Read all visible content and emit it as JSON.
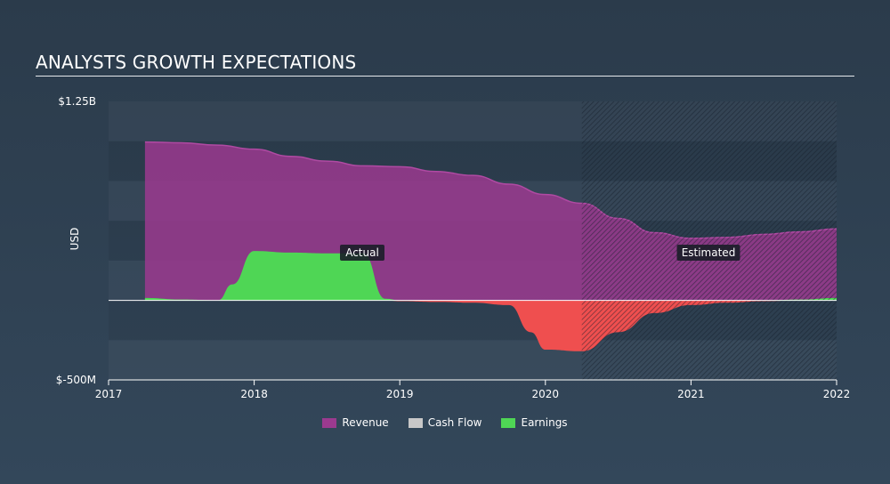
{
  "title": "ANALYSTS GROWTH EXPECTATIONS",
  "chart_data": {
    "type": "area",
    "ylabel": "USD",
    "ylim": [
      -500,
      1250
    ],
    "ylim_labels": [
      "$-500M",
      "$1.25B"
    ],
    "x_ticks": [
      2017,
      2018,
      2019,
      2020,
      2021,
      2022
    ],
    "xlim": [
      2017,
      2022
    ],
    "actual_end": 2020.25,
    "annotations": {
      "actual": "Actual",
      "estimated": "Estimated"
    },
    "legend_position": "bottom-center",
    "grid": true,
    "series": [
      {
        "name": "Revenue",
        "color": "#9b3a8f",
        "points": [
          [
            2017.25,
            995
          ],
          [
            2017.5,
            990
          ],
          [
            2017.75,
            975
          ],
          [
            2018.0,
            950
          ],
          [
            2018.25,
            905
          ],
          [
            2018.5,
            875
          ],
          [
            2018.75,
            845
          ],
          [
            2019.0,
            840
          ],
          [
            2019.25,
            810
          ],
          [
            2019.5,
            785
          ],
          [
            2019.75,
            730
          ],
          [
            2020.0,
            665
          ],
          [
            2020.25,
            610
          ],
          [
            2020.5,
            515
          ],
          [
            2020.75,
            425
          ],
          [
            2021.0,
            390
          ],
          [
            2021.25,
            395
          ],
          [
            2021.5,
            415
          ],
          [
            2021.75,
            430
          ],
          [
            2022.0,
            450
          ]
        ]
      },
      {
        "name": "Cash Flow",
        "color": "#c8c8c8",
        "points": []
      },
      {
        "name": "Earnings",
        "color": "#4fd655",
        "negative_color": "#ef4f4f",
        "points": [
          [
            2017.25,
            15
          ],
          [
            2017.5,
            5
          ],
          [
            2017.75,
            0
          ],
          [
            2017.85,
            100
          ],
          [
            2018.0,
            310
          ],
          [
            2018.25,
            300
          ],
          [
            2018.5,
            295
          ],
          [
            2018.75,
            295
          ],
          [
            2018.9,
            10
          ],
          [
            2019.0,
            -5
          ],
          [
            2019.25,
            -10
          ],
          [
            2019.5,
            -15
          ],
          [
            2019.75,
            -30
          ],
          [
            2019.9,
            -200
          ],
          [
            2020.0,
            -310
          ],
          [
            2020.25,
            -320
          ],
          [
            2020.5,
            -200
          ],
          [
            2020.75,
            -80
          ],
          [
            2021.0,
            -30
          ],
          [
            2021.25,
            -15
          ],
          [
            2021.5,
            -5
          ],
          [
            2021.75,
            5
          ],
          [
            2022.0,
            15
          ]
        ]
      }
    ]
  }
}
